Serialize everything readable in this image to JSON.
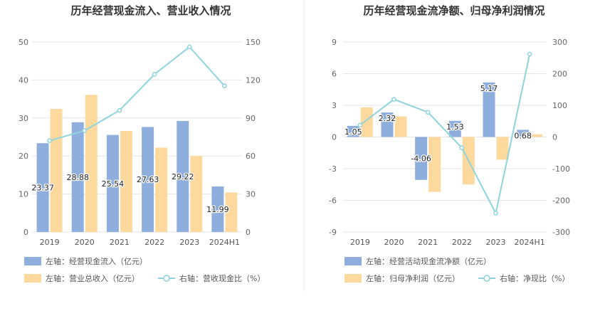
{
  "colors": {
    "bar_left": "#8eaedd",
    "bar_right": "#fdd99d",
    "line": "#8fd4dc",
    "grid": "#e6e6e6",
    "axis_text": "#666666"
  },
  "chart_data": [
    {
      "type": "bar",
      "title": "历年经营现金流入、营业收入情况",
      "categories": [
        "2019",
        "2020",
        "2021",
        "2022",
        "2023",
        "2024H1"
      ],
      "left_axis": {
        "min": 0,
        "max": 50,
        "ticks": [
          0,
          10,
          20,
          30,
          40,
          50
        ]
      },
      "right_axis": {
        "min": 0,
        "max": 150,
        "ticks": [
          0,
          30,
          60,
          90,
          120,
          150
        ]
      },
      "series": [
        {
          "name": "左轴：经营现金流入（亿元）",
          "kind": "bar",
          "axis": "left",
          "values": [
            23.37,
            28.88,
            25.54,
            27.63,
            29.22,
            11.99
          ],
          "show_labels": true
        },
        {
          "name": "左轴：营业总收入（亿元）",
          "kind": "bar",
          "axis": "left",
          "values": [
            32.4,
            36.1,
            26.6,
            22.2,
            20.0,
            10.4
          ],
          "show_labels": false
        },
        {
          "name": "右轴：营收现金比（%）",
          "kind": "line",
          "axis": "right",
          "values": [
            72.1,
            80.0,
            96.0,
            124.5,
            146.1,
            115.3
          ],
          "show_labels": false
        }
      ],
      "grid": true,
      "legend_position": "bottom"
    },
    {
      "type": "bar",
      "title": "历年经营现金流净额、归母净利润情况",
      "categories": [
        "2019",
        "2020",
        "2021",
        "2022",
        "2023",
        "2024H1"
      ],
      "left_axis": {
        "min": -9,
        "max": 9,
        "ticks": [
          -9,
          -6,
          -3,
          0,
          3,
          6,
          9
        ]
      },
      "right_axis": {
        "min": -300,
        "max": 300,
        "ticks": [
          -300,
          -200,
          -100,
          0,
          100,
          200,
          300
        ]
      },
      "series": [
        {
          "name": "左轴：经营活动现金流净额（亿元）",
          "kind": "bar",
          "axis": "left",
          "values": [
            1.05,
            2.32,
            -4.06,
            1.53,
            5.17,
            0.68
          ],
          "show_labels": true
        },
        {
          "name": "左轴：归母净利润（亿元）",
          "kind": "bar",
          "axis": "left",
          "values": [
            2.8,
            1.95,
            -5.2,
            -4.5,
            -2.15,
            0.26
          ],
          "show_labels": false
        },
        {
          "name": "右轴：净现比（%）",
          "kind": "line",
          "axis": "right",
          "values": [
            37.5,
            119.0,
            78.1,
            -34.0,
            -240.5,
            261.5
          ],
          "show_labels": false
        }
      ],
      "grid": true,
      "legend_position": "bottom"
    }
  ]
}
